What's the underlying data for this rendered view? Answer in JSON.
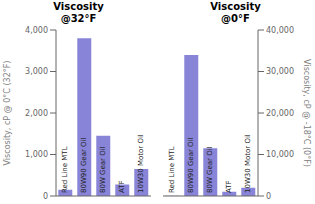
{
  "chart_data": [
    {
      "type": "bar",
      "title": "Viscosity\n@32°F",
      "categories": [
        "Red Line MTL",
        "80W90 Gear Oil",
        "80W Gear Oil",
        "ATF",
        "10W30 Motor Oil"
      ],
      "values": [
        150,
        3800,
        1450,
        275,
        650
      ],
      "ylabel": "Viscosity, cP @ 0°C (32°F)",
      "ylim": [
        0,
        4000
      ],
      "yticks": [
        0,
        {
          "value": 1000,
          "label": "1,000"
        },
        {
          "value": 2000,
          "label": "2,000"
        },
        {
          "value": 3000,
          "label": "3,000"
        },
        {
          "value": 4000,
          "label": "4,000"
        }
      ],
      "grid": false,
      "tick_labels": "y"
    },
    {
      "type": "bar",
      "title": "Viscosity\n@0°F",
      "categories": [
        "Red Line MTL",
        "80W90 Gear Oil",
        "80W Gear Oil",
        "ATF",
        "10W30 Motor Oil"
      ],
      "values": [
        50,
        34000,
        11500,
        1000,
        2000
      ],
      "ylabel": "Viscosity, cP @ -18°C (0°F)",
      "ylim": [
        0,
        40000
      ],
      "yticks": [
        0,
        {
          "value": 10000,
          "label": "10,000"
        },
        {
          "value": 20000,
          "label": "20,000"
        },
        {
          "value": 30000,
          "label": "30,000"
        },
        {
          "value": 40000,
          "label": "40,000"
        }
      ],
      "grid": false,
      "tick_labels": "y"
    }
  ]
}
